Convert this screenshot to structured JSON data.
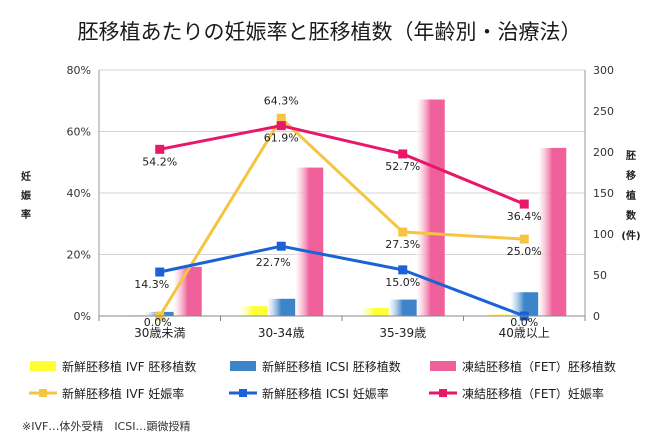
{
  "title": "胚移植あたりの妊娠率と胚移植数（年齢別・治療法）",
  "note": "※IVF…体外受精　ICSI…顕微授精",
  "chart_data": {
    "type": "bar+line",
    "title": "胚移植あたりの妊娠率と胚移植数（年齢別・治療法）",
    "categories": [
      "30歳未満",
      "30-34歳",
      "35-39歳",
      "40歳以上"
    ],
    "y_left": {
      "label": "妊娠率",
      "ylim": [
        0,
        80
      ],
      "ticks": [
        0,
        20,
        40,
        60,
        80
      ],
      "tick_labels": [
        "0%",
        "20%",
        "40%",
        "60%",
        "80%"
      ]
    },
    "y_right": {
      "label": "胚移植数（件）",
      "label_chars": [
        "胚",
        "移",
        "植",
        "数",
        "(件)"
      ],
      "ylim": [
        0,
        300
      ],
      "ticks": [
        0,
        50,
        100,
        150,
        200,
        250,
        300
      ]
    },
    "grid": true,
    "bar_series": [
      {
        "name": "新鮮胚移植 IVF 胚移植数",
        "color": "#ffff33",
        "values": [
          1,
          12,
          10,
          2
        ]
      },
      {
        "name": "新鮮胚移植 ICSI 胚移植数",
        "color": "#3d84c8",
        "values": [
          5,
          21,
          20,
          29
        ]
      },
      {
        "name": "凍結胚移植（FET）胚移植数",
        "color": "#f0609a",
        "values": [
          60,
          181,
          264,
          205
        ]
      }
    ],
    "line_series": [
      {
        "name": "新鮮胚移植 IVF 妊娠率",
        "color": "#f5c542",
        "values": [
          0.0,
          64.3,
          27.3,
          25.0
        ],
        "labels": [
          "0.0%",
          "64.3%",
          "27.3%",
          "25.0%"
        ]
      },
      {
        "name": "新鮮胚移植 ICSI 妊娠率",
        "color": "#1a62d6",
        "values": [
          14.3,
          22.7,
          15.0,
          0.0
        ],
        "labels": [
          "14.3%",
          "22.7%",
          "15.0%",
          "0.0%"
        ]
      },
      {
        "name": "凍結胚移植（FET）妊娠率",
        "color": "#e8176a",
        "values": [
          54.2,
          61.9,
          52.7,
          36.4
        ],
        "labels": [
          "54.2%",
          "61.9%",
          "52.7%",
          "36.4%"
        ]
      }
    ]
  },
  "legend": [
    {
      "label": "新鮮胚移植 IVF 胚移植数",
      "kind": "bar",
      "color": "#ffff33"
    },
    {
      "label": "新鮮胚移植 ICSI 胚移植数",
      "kind": "bar",
      "color": "#3d84c8"
    },
    {
      "label": "凍結胚移植（FET）胚移植数",
      "kind": "bar",
      "color": "#f0609a"
    },
    {
      "label": "新鮮胚移植 IVF 妊娠率",
      "kind": "line",
      "color": "#f5c542"
    },
    {
      "label": "新鮮胚移植 ICSI 妊娠率",
      "kind": "line",
      "color": "#1a62d6"
    },
    {
      "label": "凍結胚移植（FET）妊娠率",
      "kind": "line",
      "color": "#e8176a"
    }
  ]
}
